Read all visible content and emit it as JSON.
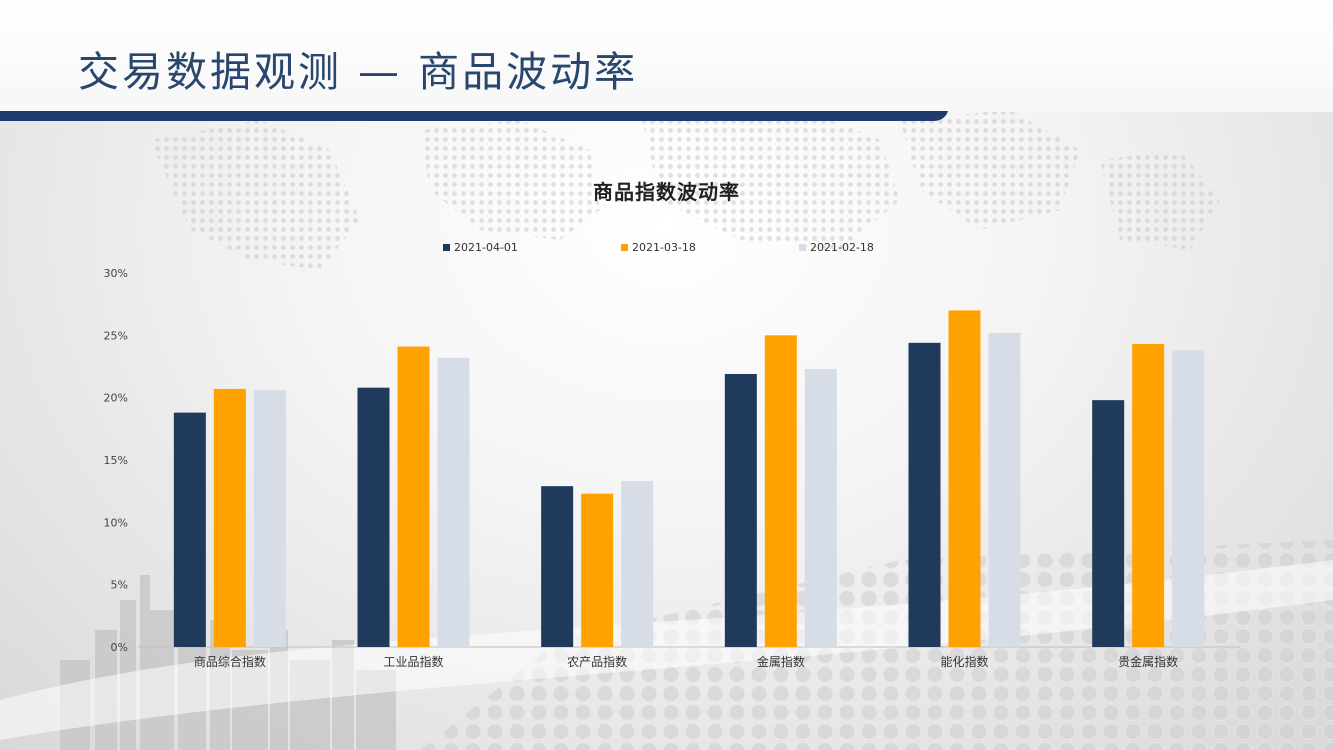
{
  "slide": {
    "title": "交易数据观测 — 商品波动率"
  },
  "colors": {
    "title": "#29476e",
    "header_rule": "#1f3a6e",
    "axis": "#bfbfbf"
  },
  "chart_data": {
    "type": "bar",
    "title": "商品指数波动率",
    "categories": [
      "商品综合指数",
      "工业品指数",
      "农产品指数",
      "金属指数",
      "能化指数",
      "贵金属指数"
    ],
    "series": [
      {
        "name": "2021-04-01",
        "color": "#1f3a5a",
        "values": [
          18.8,
          20.8,
          12.9,
          21.9,
          24.4,
          19.8
        ]
      },
      {
        "name": "2021-03-18",
        "color": "#ffa200",
        "values": [
          20.7,
          24.1,
          12.3,
          25.0,
          27.0,
          24.3
        ]
      },
      {
        "name": "2021-02-18",
        "color": "#d6dde6",
        "values": [
          20.6,
          23.2,
          13.3,
          22.3,
          25.2,
          23.8
        ]
      }
    ],
    "ylim": [
      0,
      30
    ],
    "yticks": [
      0,
      5,
      10,
      15,
      20,
      25,
      30
    ],
    "ytick_labels": [
      "0%",
      "5%",
      "10%",
      "15%",
      "20%",
      "25%",
      "30%"
    ],
    "xlabel": "",
    "ylabel": "",
    "legend_position": "top",
    "grid": false
  }
}
